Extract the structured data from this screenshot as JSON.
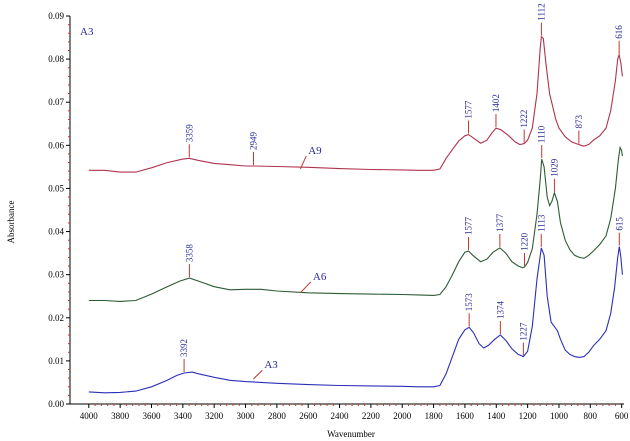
{
  "chart_data": {
    "type": "line",
    "title": "",
    "panel_label": "A3",
    "xlabel": "Wavenumber",
    "ylabel": "Absorbance",
    "xlim": [
      4120,
      585
    ],
    "ylim": [
      0.0,
      0.09
    ],
    "x_reversed": true,
    "grid": false,
    "x_ticks": [
      4000,
      3800,
      3600,
      3400,
      3200,
      3000,
      2800,
      2600,
      2400,
      2200,
      2000,
      1800,
      1600,
      1400,
      1200,
      1000,
      800,
      600
    ],
    "y_ticks": [
      "0.00",
      "0.01",
      "0.02",
      "0.03",
      "0.04",
      "0.05",
      "0.06",
      "0.07",
      "0.08",
      "0.09"
    ],
    "series": [
      {
        "name": "A9",
        "color": "#b0334e",
        "label_at": [
          2600,
          0.058
        ],
        "label_anchor": [
          2650,
          0.0545
        ],
        "points": [
          [
            4000,
            0.0542
          ],
          [
            3900,
            0.0542
          ],
          [
            3800,
            0.0538
          ],
          [
            3700,
            0.0538
          ],
          [
            3600,
            0.0548
          ],
          [
            3500,
            0.056
          ],
          [
            3400,
            0.0568
          ],
          [
            3359,
            0.057
          ],
          [
            3300,
            0.0565
          ],
          [
            3200,
            0.0558
          ],
          [
            3100,
            0.0555
          ],
          [
            3000,
            0.0552
          ],
          [
            2949,
            0.0552
          ],
          [
            2800,
            0.0551
          ],
          [
            2600,
            0.0549
          ],
          [
            2400,
            0.0546
          ],
          [
            2200,
            0.0544
          ],
          [
            2000,
            0.0543
          ],
          [
            1900,
            0.0542
          ],
          [
            1800,
            0.0542
          ],
          [
            1760,
            0.0545
          ],
          [
            1720,
            0.057
          ],
          [
            1680,
            0.059
          ],
          [
            1640,
            0.061
          ],
          [
            1600,
            0.0622
          ],
          [
            1577,
            0.0625
          ],
          [
            1550,
            0.0618
          ],
          [
            1500,
            0.0605
          ],
          [
            1460,
            0.0612
          ],
          [
            1430,
            0.0628
          ],
          [
            1402,
            0.064
          ],
          [
            1370,
            0.0636
          ],
          [
            1320,
            0.0622
          ],
          [
            1280,
            0.0608
          ],
          [
            1250,
            0.0602
          ],
          [
            1222,
            0.0604
          ],
          [
            1200,
            0.0612
          ],
          [
            1170,
            0.064
          ],
          [
            1140,
            0.072
          ],
          [
            1120,
            0.0825
          ],
          [
            1112,
            0.0852
          ],
          [
            1100,
            0.0848
          ],
          [
            1080,
            0.078
          ],
          [
            1060,
            0.072
          ],
          [
            1040,
            0.069
          ],
          [
            1020,
            0.066
          ],
          [
            1000,
            0.064
          ],
          [
            960,
            0.062
          ],
          [
            920,
            0.0608
          ],
          [
            890,
            0.0604
          ],
          [
            873,
            0.0602
          ],
          [
            860,
            0.06
          ],
          [
            840,
            0.0598
          ],
          [
            810,
            0.0602
          ],
          [
            780,
            0.0612
          ],
          [
            740,
            0.0622
          ],
          [
            700,
            0.064
          ],
          [
            670,
            0.068
          ],
          [
            640,
            0.075
          ],
          [
            625,
            0.08
          ],
          [
            616,
            0.081
          ],
          [
            605,
            0.079
          ],
          [
            595,
            0.076
          ]
        ],
        "annotations": [
          [
            3359,
            0.057
          ],
          [
            2949,
            0.0552
          ],
          [
            1577,
            0.0625
          ],
          [
            1402,
            0.064
          ],
          [
            1222,
            0.0604
          ],
          [
            1112,
            0.0852
          ],
          [
            873,
            0.0602
          ],
          [
            616,
            0.081
          ]
        ],
        "annotation_labels": [
          "3359",
          "2949",
          "1577",
          "1402",
          "1222",
          "1112",
          "873",
          "616"
        ]
      },
      {
        "name": "A6",
        "color": "#2e5b34",
        "label_at": [
          2570,
          0.0288
        ],
        "label_anchor": [
          2650,
          0.0258
        ],
        "points": [
          [
            4000,
            0.024
          ],
          [
            3900,
            0.024
          ],
          [
            3800,
            0.0238
          ],
          [
            3700,
            0.024
          ],
          [
            3600,
            0.0255
          ],
          [
            3500,
            0.0272
          ],
          [
            3420,
            0.0285
          ],
          [
            3358,
            0.0292
          ],
          [
            3300,
            0.0285
          ],
          [
            3200,
            0.0272
          ],
          [
            3100,
            0.0265
          ],
          [
            3000,
            0.0266
          ],
          [
            2900,
            0.0266
          ],
          [
            2800,
            0.0262
          ],
          [
            2600,
            0.0258
          ],
          [
            2400,
            0.0256
          ],
          [
            2200,
            0.0255
          ],
          [
            2000,
            0.0254
          ],
          [
            1900,
            0.0253
          ],
          [
            1800,
            0.0252
          ],
          [
            1760,
            0.0254
          ],
          [
            1720,
            0.0272
          ],
          [
            1680,
            0.03
          ],
          [
            1640,
            0.033
          ],
          [
            1600,
            0.0352
          ],
          [
            1577,
            0.0355
          ],
          [
            1550,
            0.0345
          ],
          [
            1500,
            0.033
          ],
          [
            1460,
            0.0336
          ],
          [
            1420,
            0.0352
          ],
          [
            1377,
            0.0362
          ],
          [
            1340,
            0.035
          ],
          [
            1300,
            0.033
          ],
          [
            1260,
            0.032
          ],
          [
            1230,
            0.0316
          ],
          [
            1220,
            0.0318
          ],
          [
            1200,
            0.0328
          ],
          [
            1170,
            0.036
          ],
          [
            1140,
            0.044
          ],
          [
            1120,
            0.052
          ],
          [
            1110,
            0.0568
          ],
          [
            1095,
            0.055
          ],
          [
            1075,
            0.048
          ],
          [
            1060,
            0.046
          ],
          [
            1045,
            0.047
          ],
          [
            1029,
            0.049
          ],
          [
            1010,
            0.047
          ],
          [
            990,
            0.042
          ],
          [
            960,
            0.038
          ],
          [
            930,
            0.0358
          ],
          [
            900,
            0.0345
          ],
          [
            870,
            0.034
          ],
          [
            840,
            0.0338
          ],
          [
            810,
            0.0345
          ],
          [
            780,
            0.0355
          ],
          [
            740,
            0.037
          ],
          [
            700,
            0.039
          ],
          [
            670,
            0.043
          ],
          [
            640,
            0.05
          ],
          [
            620,
            0.057
          ],
          [
            610,
            0.0595
          ],
          [
            600,
            0.0588
          ],
          [
            595,
            0.0575
          ]
        ],
        "annotations": [
          [
            3358,
            0.0292
          ],
          [
            1577,
            0.0355
          ],
          [
            1377,
            0.0362
          ],
          [
            1220,
            0.0318
          ],
          [
            1110,
            0.0568
          ],
          [
            1029,
            0.049
          ]
        ],
        "annotation_labels": [
          "3358",
          "1577",
          "1377",
          "1220",
          "1110",
          "1029"
        ]
      },
      {
        "name": "A3",
        "color": "#2a30b8",
        "label_at": [
          2880,
          0.0083
        ],
        "label_anchor": [
          2950,
          0.0058
        ],
        "points": [
          [
            4000,
            0.0028
          ],
          [
            3900,
            0.0026
          ],
          [
            3800,
            0.0027
          ],
          [
            3700,
            0.003
          ],
          [
            3600,
            0.004
          ],
          [
            3500,
            0.0055
          ],
          [
            3440,
            0.0066
          ],
          [
            3392,
            0.0072
          ],
          [
            3340,
            0.0074
          ],
          [
            3300,
            0.007
          ],
          [
            3200,
            0.0062
          ],
          [
            3100,
            0.0055
          ],
          [
            3000,
            0.0052
          ],
          [
            2900,
            0.005
          ],
          [
            2800,
            0.0048
          ],
          [
            2600,
            0.0045
          ],
          [
            2400,
            0.0043
          ],
          [
            2200,
            0.0042
          ],
          [
            2000,
            0.0041
          ],
          [
            1900,
            0.004
          ],
          [
            1800,
            0.004
          ],
          [
            1760,
            0.0043
          ],
          [
            1720,
            0.007
          ],
          [
            1680,
            0.011
          ],
          [
            1640,
            0.015
          ],
          [
            1600,
            0.0172
          ],
          [
            1573,
            0.0178
          ],
          [
            1545,
            0.0165
          ],
          [
            1510,
            0.014
          ],
          [
            1480,
            0.013
          ],
          [
            1450,
            0.0136
          ],
          [
            1410,
            0.015
          ],
          [
            1374,
            0.016
          ],
          [
            1340,
            0.0148
          ],
          [
            1300,
            0.0128
          ],
          [
            1260,
            0.0115
          ],
          [
            1227,
            0.011
          ],
          [
            1200,
            0.0122
          ],
          [
            1170,
            0.018
          ],
          [
            1140,
            0.029
          ],
          [
            1113,
            0.0362
          ],
          [
            1095,
            0.0345
          ],
          [
            1075,
            0.025
          ],
          [
            1050,
            0.019
          ],
          [
            1030,
            0.018
          ],
          [
            1010,
            0.017
          ],
          [
            990,
            0.015
          ],
          [
            960,
            0.0125
          ],
          [
            930,
            0.0115
          ],
          [
            900,
            0.011
          ],
          [
            870,
            0.0108
          ],
          [
            840,
            0.011
          ],
          [
            810,
            0.012
          ],
          [
            780,
            0.0135
          ],
          [
            740,
            0.015
          ],
          [
            700,
            0.017
          ],
          [
            670,
            0.021
          ],
          [
            645,
            0.027
          ],
          [
            625,
            0.034
          ],
          [
            615,
            0.0365
          ],
          [
            605,
            0.034
          ],
          [
            595,
            0.03
          ]
        ],
        "annotations": [
          [
            3392,
            0.0072
          ],
          [
            1573,
            0.0178
          ],
          [
            1374,
            0.016
          ],
          [
            1227,
            0.011
          ],
          [
            1113,
            0.0362
          ],
          [
            615,
            0.0365
          ]
        ],
        "annotation_labels": [
          "3392",
          "1573",
          "1374",
          "1227",
          "1113",
          "615"
        ]
      }
    ]
  }
}
